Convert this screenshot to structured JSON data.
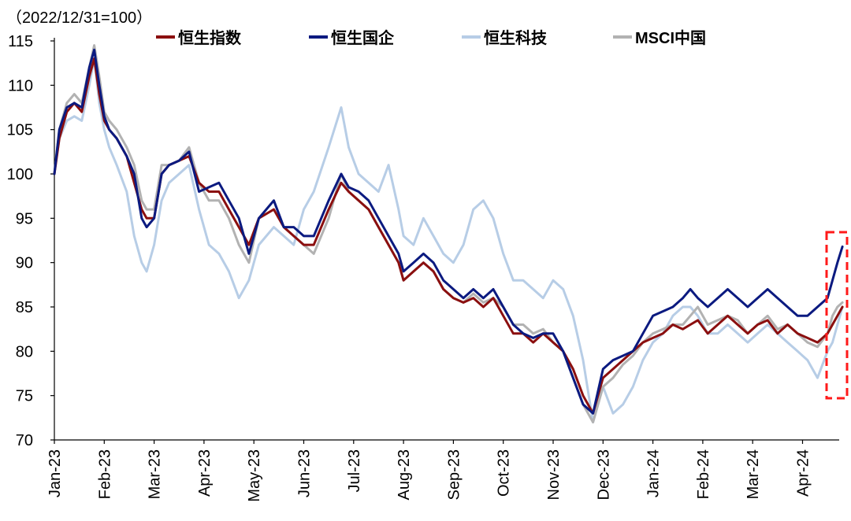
{
  "chart_data": {
    "type": "line",
    "subtitle": "（2022/12/31=100）",
    "ylim": [
      70,
      115
    ],
    "yticks": [
      70,
      75,
      80,
      85,
      90,
      95,
      100,
      105,
      110,
      115
    ],
    "x_range_months": [
      0,
      16
    ],
    "categories": [
      "Jan-23",
      "Feb-23",
      "Mar-23",
      "Apr-23",
      "May-23",
      "Jun-23",
      "Jul-23",
      "Aug-23",
      "Sep-23",
      "Oct-23",
      "Nov-23",
      "Dec-23",
      "Jan-24",
      "Feb-24",
      "Mar-24",
      "Apr-24"
    ],
    "legend_position": "top",
    "annotation": "red dashed box highlighting latest rebound",
    "series": [
      {
        "name": "恒生指数",
        "color": "#8b0f0f",
        "x": [
          0,
          0.1,
          0.25,
          0.4,
          0.55,
          0.7,
          0.8,
          0.9,
          1.0,
          1.1,
          1.25,
          1.45,
          1.6,
          1.75,
          1.85,
          2.0,
          2.15,
          2.3,
          2.5,
          2.7,
          2.9,
          3.1,
          3.3,
          3.5,
          3.7,
          3.9,
          4.1,
          4.4,
          4.6,
          4.8,
          5.0,
          5.2,
          5.5,
          5.75,
          5.9,
          6.1,
          6.3,
          6.5,
          6.7,
          6.9,
          7.0,
          7.2,
          7.4,
          7.6,
          7.8,
          8.0,
          8.2,
          8.4,
          8.6,
          8.8,
          9.0,
          9.2,
          9.4,
          9.6,
          9.8,
          10.0,
          10.2,
          10.4,
          10.6,
          10.8,
          11.0,
          11.2,
          11.4,
          11.6,
          11.8,
          12.0,
          12.2,
          12.4,
          12.6,
          12.75,
          12.9,
          13.1,
          13.3,
          13.5,
          13.7,
          13.9,
          14.1,
          14.3,
          14.5,
          14.7,
          14.9,
          15.1,
          15.3,
          15.5,
          15.6,
          15.7,
          15.8
        ],
        "values": [
          100,
          104,
          107,
          108,
          107,
          111,
          113,
          109,
          106,
          105,
          104,
          102,
          99,
          96,
          95,
          95,
          100,
          101,
          101.5,
          102,
          99,
          98,
          98,
          96,
          94,
          92,
          95,
          96,
          94,
          93,
          92,
          92,
          96,
          99,
          98,
          97,
          96,
          94,
          92,
          90,
          88,
          89,
          90,
          89,
          87,
          86,
          85.5,
          86,
          85,
          86,
          84,
          82,
          82,
          81,
          82,
          81,
          80,
          78,
          75,
          73,
          77,
          78,
          79,
          80,
          81,
          81.5,
          82,
          83,
          82.5,
          83,
          83.5,
          82,
          83,
          84,
          83,
          82,
          83,
          83.5,
          82,
          83,
          82,
          81.5,
          81,
          82,
          83,
          84,
          85
        ]
      },
      {
        "name": "恒生国企",
        "color": "#0b1a80",
        "x": [
          0,
          0.1,
          0.25,
          0.4,
          0.55,
          0.7,
          0.8,
          0.9,
          1.0,
          1.1,
          1.25,
          1.45,
          1.6,
          1.75,
          1.85,
          2.0,
          2.15,
          2.3,
          2.5,
          2.7,
          2.9,
          3.1,
          3.3,
          3.5,
          3.7,
          3.9,
          4.1,
          4.4,
          4.6,
          4.8,
          5.0,
          5.2,
          5.5,
          5.75,
          5.9,
          6.1,
          6.3,
          6.5,
          6.7,
          6.9,
          7.0,
          7.2,
          7.4,
          7.6,
          7.8,
          8.0,
          8.2,
          8.4,
          8.6,
          8.8,
          9.0,
          9.2,
          9.4,
          9.6,
          9.8,
          10.0,
          10.2,
          10.4,
          10.6,
          10.8,
          11.0,
          11.2,
          11.4,
          11.6,
          11.8,
          12.0,
          12.2,
          12.4,
          12.6,
          12.75,
          12.9,
          13.1,
          13.3,
          13.5,
          13.7,
          13.9,
          14.1,
          14.3,
          14.5,
          14.7,
          14.9,
          15.1,
          15.3,
          15.5,
          15.6,
          15.7,
          15.8
        ],
        "values": [
          100,
          105,
          107.5,
          108,
          107.5,
          112,
          114,
          110,
          106.5,
          105,
          104,
          102,
          100,
          95,
          94,
          95,
          100,
          101,
          101.5,
          102.5,
          98,
          98.5,
          99,
          97,
          95,
          91,
          95,
          97,
          94,
          94,
          93,
          93,
          97,
          100,
          98.5,
          98,
          97,
          95,
          93,
          91,
          89,
          90,
          91,
          90,
          88,
          87,
          86,
          87,
          86,
          87,
          85,
          83,
          82,
          81.5,
          82,
          82,
          80,
          77,
          74,
          73,
          78,
          79,
          79.5,
          80,
          82,
          84,
          84.5,
          85,
          86,
          87,
          86,
          85,
          86,
          87,
          86,
          85,
          86,
          87,
          86,
          85,
          84,
          84,
          85,
          86,
          88,
          90,
          91.8
        ]
      },
      {
        "name": "恒生科技",
        "color": "#b7cde6",
        "x": [
          0,
          0.1,
          0.25,
          0.4,
          0.55,
          0.7,
          0.8,
          0.9,
          1.0,
          1.1,
          1.25,
          1.45,
          1.6,
          1.75,
          1.85,
          2.0,
          2.15,
          2.3,
          2.5,
          2.7,
          2.9,
          3.1,
          3.3,
          3.5,
          3.7,
          3.9,
          4.1,
          4.4,
          4.6,
          4.8,
          5.0,
          5.2,
          5.5,
          5.75,
          5.9,
          6.1,
          6.3,
          6.5,
          6.7,
          6.9,
          7.0,
          7.2,
          7.4,
          7.6,
          7.8,
          8.0,
          8.2,
          8.4,
          8.6,
          8.8,
          9.0,
          9.2,
          9.4,
          9.6,
          9.8,
          10.0,
          10.2,
          10.4,
          10.6,
          10.8,
          11.0,
          11.2,
          11.4,
          11.6,
          11.8,
          12.0,
          12.2,
          12.4,
          12.6,
          12.75,
          12.9,
          13.1,
          13.3,
          13.5,
          13.7,
          13.9,
          14.1,
          14.3,
          14.5,
          14.7,
          14.9,
          15.1,
          15.3,
          15.5,
          15.6,
          15.7,
          15.8
        ],
        "values": [
          100,
          104,
          106,
          106.5,
          106,
          110,
          113,
          108,
          105,
          103,
          101,
          98,
          93,
          90,
          89,
          92,
          97,
          99,
          100,
          101,
          96,
          92,
          91,
          89,
          86,
          88,
          92,
          94,
          93,
          92,
          96,
          98,
          103,
          107.5,
          103,
          100,
          99,
          98,
          101,
          96,
          93,
          92,
          95,
          93,
          91,
          90,
          92,
          96,
          97,
          95,
          91,
          88,
          88,
          87,
          86,
          88,
          87,
          84,
          79,
          72,
          76,
          73,
          74,
          76,
          79,
          81,
          82,
          84,
          85,
          85,
          84,
          82,
          82,
          83,
          82,
          81,
          82,
          83,
          82,
          81,
          80,
          79,
          77,
          80,
          81,
          83,
          85
        ]
      },
      {
        "name": "MSCI中国",
        "color": "#b2b2b2",
        "x": [
          0,
          0.1,
          0.25,
          0.4,
          0.55,
          0.7,
          0.8,
          0.9,
          1.0,
          1.1,
          1.25,
          1.45,
          1.6,
          1.75,
          1.85,
          2.0,
          2.15,
          2.3,
          2.5,
          2.7,
          2.9,
          3.1,
          3.3,
          3.5,
          3.7,
          3.9,
          4.1,
          4.4,
          4.6,
          4.8,
          5.0,
          5.2,
          5.5,
          5.75,
          5.9,
          6.1,
          6.3,
          6.5,
          6.7,
          6.9,
          7.0,
          7.2,
          7.4,
          7.6,
          7.8,
          8.0,
          8.2,
          8.4,
          8.6,
          8.8,
          9.0,
          9.2,
          9.4,
          9.6,
          9.8,
          10.0,
          10.2,
          10.4,
          10.6,
          10.8,
          11.0,
          11.2,
          11.4,
          11.6,
          11.8,
          12.0,
          12.2,
          12.4,
          12.6,
          12.75,
          12.9,
          13.1,
          13.3,
          13.5,
          13.7,
          13.9,
          14.1,
          14.3,
          14.5,
          14.7,
          14.9,
          15.1,
          15.3,
          15.5,
          15.6,
          15.7,
          15.8
        ],
        "values": [
          100,
          105,
          108,
          109,
          108,
          112,
          114.5,
          111,
          107,
          106,
          105,
          103,
          101,
          97,
          96,
          96,
          101,
          101,
          101.5,
          103,
          99,
          97,
          97,
          95,
          92,
          90,
          95,
          97,
          94,
          93,
          92,
          91,
          95,
          100,
          98,
          97,
          96,
          94,
          92,
          90,
          88,
          89,
          90,
          89,
          87,
          86,
          85.5,
          86.5,
          85.5,
          86,
          85,
          83,
          83,
          82,
          82.5,
          81,
          80,
          77,
          74,
          72,
          76,
          77,
          78.5,
          79.5,
          81,
          82,
          82.5,
          83,
          83,
          84,
          85,
          83,
          83.5,
          84,
          83.5,
          82,
          83,
          84,
          82.5,
          83,
          82,
          81,
          80.5,
          82,
          84,
          85,
          85.5
        ]
      }
    ]
  }
}
